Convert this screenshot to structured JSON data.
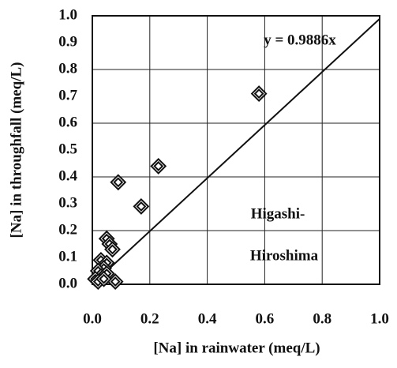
{
  "chart_data": {
    "type": "scatter",
    "xlabel": "[Na] in rainwater (meq/L)",
    "ylabel": "[Na] in throughfall (meq/L)",
    "fit_label": "y = 0.9886x",
    "fit_slope": 0.9886,
    "site_label": [
      "Higashi-",
      "Hiroshima"
    ],
    "x": [
      0.58,
      0.23,
      0.09,
      0.17,
      0.05,
      0.06,
      0.07,
      0.03,
      0.05,
      0.04,
      0.02,
      0.03,
      0.01,
      0.02,
      0.08,
      0.05,
      0.04
    ],
    "values": [
      0.71,
      0.44,
      0.38,
      0.29,
      0.17,
      0.15,
      0.13,
      0.09,
      0.08,
      0.06,
      0.05,
      0.03,
      0.02,
      0.01,
      0.01,
      0.04,
      0.02
    ],
    "color": "#111111",
    "xlim": [
      0,
      1
    ],
    "ylim": [
      0,
      1
    ],
    "xticks": [
      {
        "value": 0,
        "label": "0.0"
      },
      0.2,
      0.4,
      0.6,
      0.8,
      {
        "value": 1,
        "label": "1.0"
      }
    ],
    "yticks": [
      {
        "value": 0,
        "label": "0.0"
      },
      0.1,
      0.2,
      0.3,
      0.4,
      0.5,
      0.6,
      0.7,
      0.8,
      0.9,
      {
        "value": 1,
        "label": "1.0"
      }
    ],
    "grid": true
  }
}
